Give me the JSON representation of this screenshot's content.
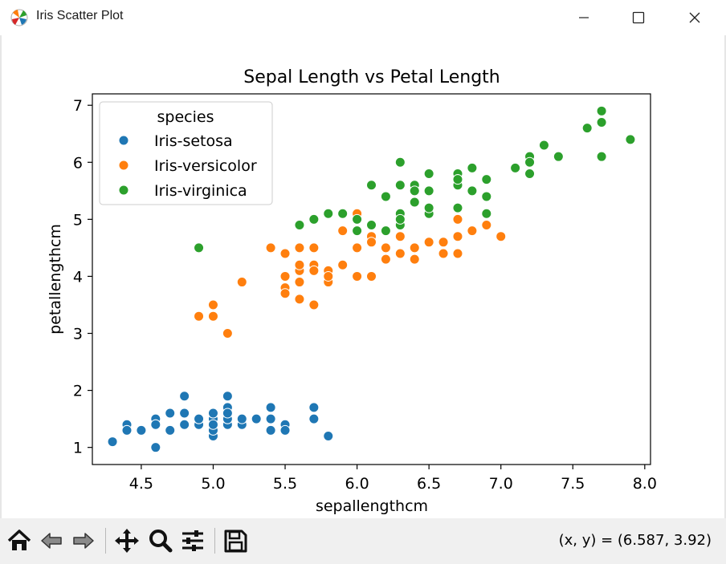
{
  "window": {
    "title": "Iris Scatter Plot",
    "icon": "matplotlib-icon",
    "controls": [
      "minimize-icon",
      "maximize-icon",
      "close-icon"
    ]
  },
  "toolbar": {
    "buttons": [
      "home-icon",
      "back-icon",
      "forward-icon",
      "pan-icon",
      "zoom-icon",
      "configure-subplots-icon",
      "save-icon"
    ],
    "coords_text": "(x, y) = (6.587, 3.92)"
  },
  "chart_data": {
    "type": "scatter",
    "title": "Sepal Length vs Petal Length",
    "xlabel": "sepallengthcm",
    "ylabel": "petallengthcm",
    "xlim": [
      4.16,
      8.04
    ],
    "ylim": [
      0.7,
      7.2
    ],
    "xticks": [
      "4.5",
      "5.0",
      "5.5",
      "6.0",
      "6.5",
      "7.0",
      "7.5",
      "8.0"
    ],
    "yticks": [
      "1",
      "2",
      "3",
      "4",
      "5",
      "6",
      "7"
    ],
    "xtick_values": [
      4.5,
      5.0,
      5.5,
      6.0,
      6.5,
      7.0,
      7.5,
      8.0
    ],
    "ytick_values": [
      1,
      2,
      3,
      4,
      5,
      6,
      7
    ],
    "grid": false,
    "legend": {
      "title": "species",
      "position": "top-left"
    },
    "series": [
      {
        "name": "Iris-setosa",
        "color": "#1f77b4",
        "points": [
          [
            5.1,
            1.4
          ],
          [
            4.9,
            1.4
          ],
          [
            4.7,
            1.3
          ],
          [
            4.6,
            1.5
          ],
          [
            5.0,
            1.4
          ],
          [
            5.4,
            1.7
          ],
          [
            4.6,
            1.4
          ],
          [
            5.0,
            1.5
          ],
          [
            4.4,
            1.4
          ],
          [
            4.9,
            1.5
          ],
          [
            5.4,
            1.5
          ],
          [
            4.8,
            1.6
          ],
          [
            4.8,
            1.4
          ],
          [
            4.3,
            1.1
          ],
          [
            5.8,
            1.2
          ],
          [
            5.7,
            1.5
          ],
          [
            5.4,
            1.3
          ],
          [
            5.1,
            1.4
          ],
          [
            5.7,
            1.7
          ],
          [
            5.1,
            1.5
          ],
          [
            5.4,
            1.7
          ],
          [
            5.1,
            1.5
          ],
          [
            4.6,
            1.0
          ],
          [
            5.1,
            1.7
          ],
          [
            4.8,
            1.9
          ],
          [
            5.0,
            1.6
          ],
          [
            5.0,
            1.6
          ],
          [
            5.2,
            1.5
          ],
          [
            5.2,
            1.4
          ],
          [
            4.7,
            1.6
          ],
          [
            4.8,
            1.6
          ],
          [
            5.4,
            1.5
          ],
          [
            5.2,
            1.5
          ],
          [
            5.5,
            1.4
          ],
          [
            4.9,
            1.5
          ],
          [
            5.0,
            1.2
          ],
          [
            5.5,
            1.3
          ],
          [
            4.9,
            1.5
          ],
          [
            4.4,
            1.3
          ],
          [
            5.1,
            1.5
          ],
          [
            5.0,
            1.3
          ],
          [
            4.5,
            1.3
          ],
          [
            4.4,
            1.3
          ],
          [
            5.0,
            1.6
          ],
          [
            5.1,
            1.9
          ],
          [
            4.8,
            1.4
          ],
          [
            5.1,
            1.6
          ],
          [
            4.6,
            1.4
          ],
          [
            5.3,
            1.5
          ],
          [
            5.0,
            1.4
          ]
        ]
      },
      {
        "name": "Iris-versicolor",
        "color": "#ff7f0e",
        "points": [
          [
            7.0,
            4.7
          ],
          [
            6.4,
            4.5
          ],
          [
            6.9,
            4.9
          ],
          [
            5.5,
            4.0
          ],
          [
            6.5,
            4.6
          ],
          [
            5.7,
            4.5
          ],
          [
            6.3,
            4.7
          ],
          [
            4.9,
            3.3
          ],
          [
            6.6,
            4.6
          ],
          [
            5.2,
            3.9
          ],
          [
            5.0,
            3.5
          ],
          [
            5.9,
            4.2
          ],
          [
            6.0,
            4.0
          ],
          [
            6.1,
            4.7
          ],
          [
            5.6,
            3.6
          ],
          [
            6.7,
            4.4
          ],
          [
            5.6,
            4.5
          ],
          [
            5.8,
            4.1
          ],
          [
            6.2,
            4.5
          ],
          [
            5.6,
            3.9
          ],
          [
            5.9,
            4.8
          ],
          [
            6.1,
            4.0
          ],
          [
            6.3,
            4.9
          ],
          [
            6.1,
            4.7
          ],
          [
            6.4,
            4.3
          ],
          [
            6.6,
            4.4
          ],
          [
            6.8,
            4.8
          ],
          [
            6.7,
            5.0
          ],
          [
            6.0,
            4.5
          ],
          [
            5.7,
            3.5
          ],
          [
            5.5,
            3.8
          ],
          [
            5.5,
            3.7
          ],
          [
            5.8,
            3.9
          ],
          [
            6.0,
            5.1
          ],
          [
            5.4,
            4.5
          ],
          [
            6.0,
            4.5
          ],
          [
            6.7,
            4.7
          ],
          [
            6.3,
            4.4
          ],
          [
            5.6,
            4.1
          ],
          [
            5.5,
            4.0
          ],
          [
            5.5,
            4.4
          ],
          [
            6.1,
            4.6
          ],
          [
            5.8,
            4.0
          ],
          [
            5.0,
            3.3
          ],
          [
            5.6,
            4.2
          ],
          [
            5.7,
            4.2
          ],
          [
            5.7,
            4.2
          ],
          [
            6.2,
            4.3
          ],
          [
            5.1,
            3.0
          ],
          [
            5.7,
            4.1
          ]
        ]
      },
      {
        "name": "Iris-virginica",
        "color": "#2ca02c",
        "points": [
          [
            6.3,
            6.0
          ],
          [
            5.8,
            5.1
          ],
          [
            7.1,
            5.9
          ],
          [
            6.3,
            5.6
          ],
          [
            6.5,
            5.8
          ],
          [
            7.6,
            6.6
          ],
          [
            4.9,
            4.5
          ],
          [
            7.3,
            6.3
          ],
          [
            6.7,
            5.8
          ],
          [
            7.2,
            6.1
          ],
          [
            6.5,
            5.1
          ],
          [
            6.4,
            5.3
          ],
          [
            6.8,
            5.5
          ],
          [
            5.7,
            5.0
          ],
          [
            5.8,
            5.1
          ],
          [
            6.4,
            5.3
          ],
          [
            6.5,
            5.5
          ],
          [
            7.7,
            6.7
          ],
          [
            7.7,
            6.9
          ],
          [
            6.0,
            5.0
          ],
          [
            6.9,
            5.7
          ],
          [
            5.6,
            4.9
          ],
          [
            7.7,
            6.7
          ],
          [
            6.3,
            4.9
          ],
          [
            6.7,
            5.7
          ],
          [
            7.2,
            6.0
          ],
          [
            6.2,
            4.8
          ],
          [
            6.1,
            4.9
          ],
          [
            6.4,
            5.6
          ],
          [
            7.2,
            5.8
          ],
          [
            7.4,
            6.1
          ],
          [
            7.9,
            6.4
          ],
          [
            6.4,
            5.6
          ],
          [
            6.3,
            5.1
          ],
          [
            6.1,
            5.6
          ],
          [
            7.7,
            6.1
          ],
          [
            6.3,
            5.6
          ],
          [
            6.4,
            5.5
          ],
          [
            6.0,
            4.8
          ],
          [
            6.9,
            5.4
          ],
          [
            6.7,
            5.6
          ],
          [
            6.9,
            5.1
          ],
          [
            5.8,
            5.1
          ],
          [
            6.8,
            5.9
          ],
          [
            6.7,
            5.7
          ],
          [
            6.7,
            5.2
          ],
          [
            6.3,
            5.0
          ],
          [
            6.5,
            5.2
          ],
          [
            6.2,
            5.4
          ],
          [
            5.9,
            5.1
          ]
        ]
      }
    ]
  }
}
